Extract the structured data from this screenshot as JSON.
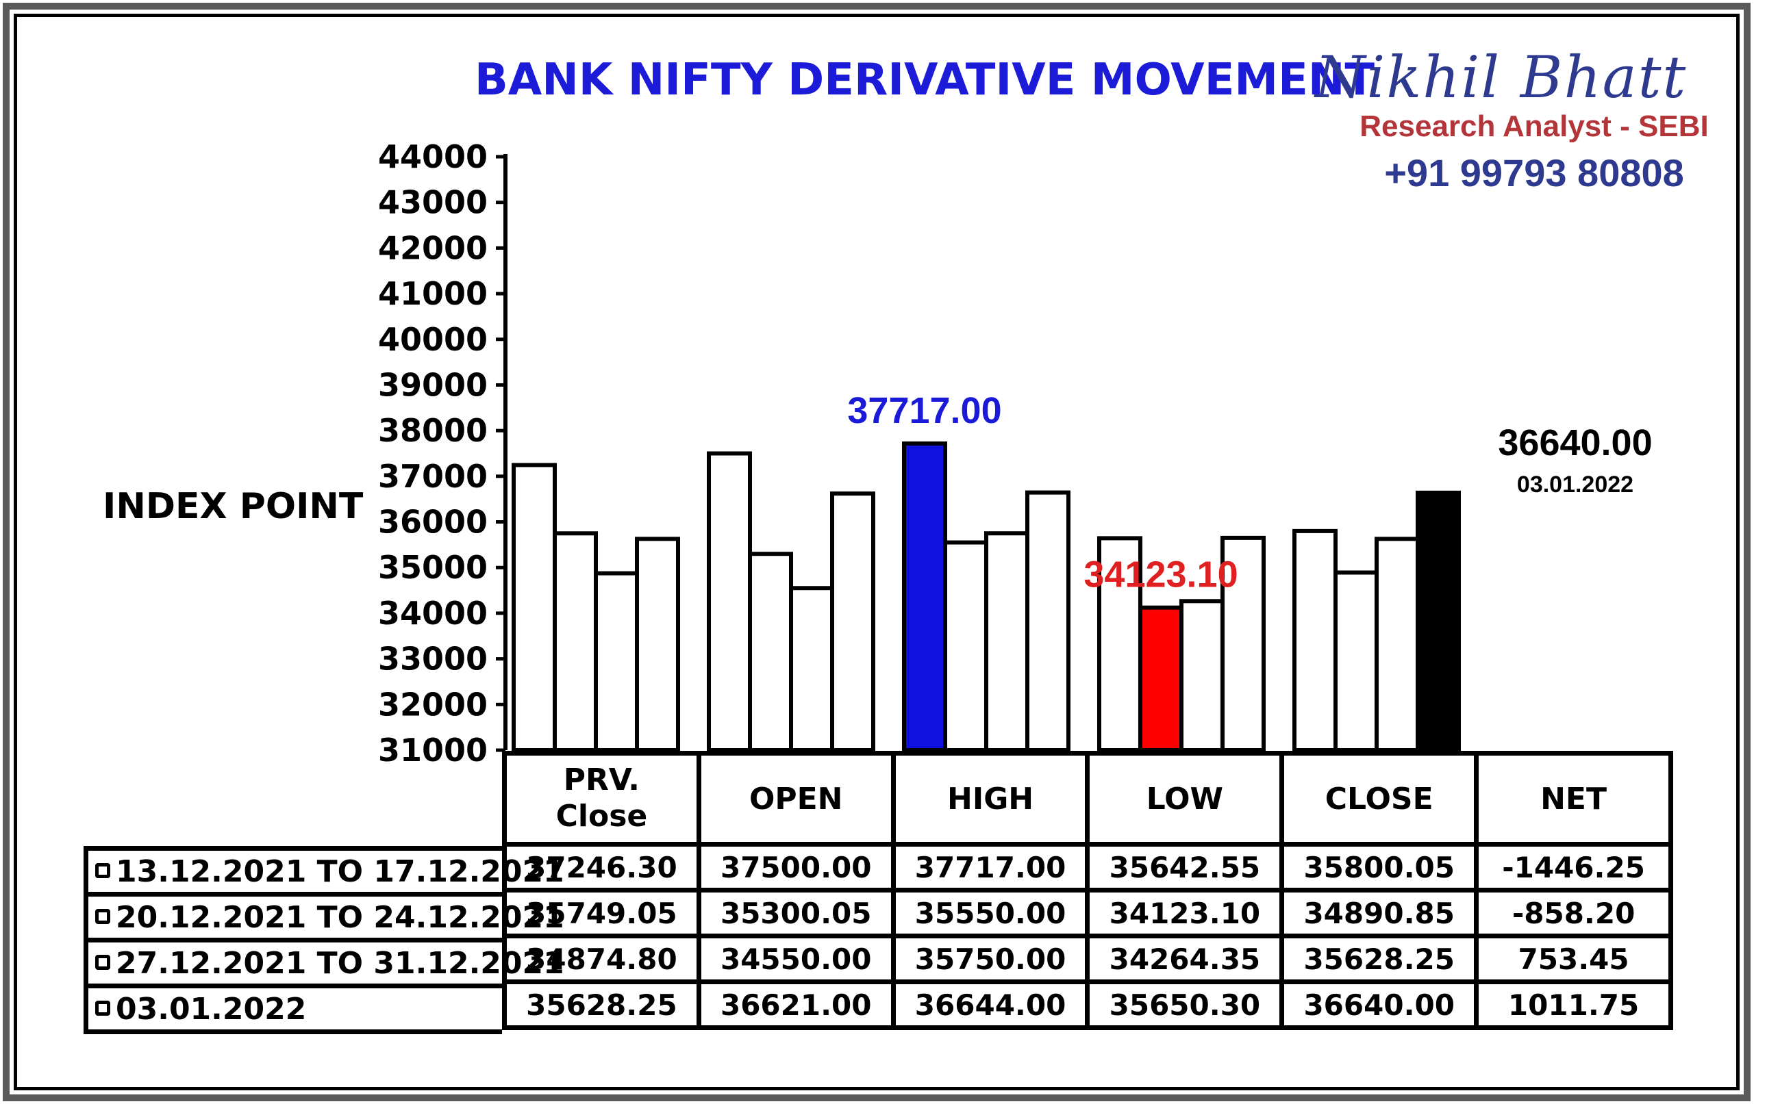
{
  "header": {
    "title": "BANK NIFTY DERIVATIVE MOVEMENT",
    "brand_name": "Nikhil Bhatt",
    "brand_role": "Research Analyst - SEBI",
    "brand_phone": "+91 99793 80808"
  },
  "colors": {
    "title": "#1b1bd8",
    "high_highlight": "#1010e0",
    "low_highlight": "#ff0000",
    "close_highlight": "#000000",
    "bar_default": "#ffffff"
  },
  "chart_data": {
    "type": "bar",
    "title": "BANK NIFTY DERIVATIVE MOVEMENT",
    "ylabel": "INDEX POINT",
    "xlabel": "",
    "ylim": [
      31000,
      44000
    ],
    "yticks": [
      31000,
      32000,
      33000,
      34000,
      35000,
      36000,
      37000,
      38000,
      39000,
      40000,
      41000,
      42000,
      43000,
      44000
    ],
    "grid": false,
    "legend": "table-left",
    "categories": [
      "PRV.\nClose",
      "OPEN",
      "HIGH",
      "LOW",
      "CLOSE"
    ],
    "series": [
      {
        "name": "13.12.2021 TO 17.12.2021",
        "values": [
          37246.3,
          37500.0,
          37717.0,
          35642.55,
          35800.05
        ]
      },
      {
        "name": "20.12.2021 TO 24.12.2021",
        "values": [
          35749.05,
          35300.05,
          35550.0,
          34123.1,
          34890.85
        ]
      },
      {
        "name": "27.12.2021 TO 31.12.2021",
        "values": [
          34874.8,
          34550.0,
          35750.0,
          34264.35,
          35628.25
        ]
      },
      {
        "name": "03.01.2022",
        "values": [
          35628.25,
          36621.0,
          36644.0,
          35650.3,
          36640.0
        ]
      }
    ],
    "highlights": [
      {
        "category": 2,
        "series": 0,
        "color": "#1010e0"
      },
      {
        "category": 3,
        "series": 1,
        "color": "#ff0000"
      },
      {
        "category": 4,
        "series": 3,
        "color": "#000000"
      }
    ],
    "annotations": [
      {
        "text": "37717.00",
        "color": "#1a1ad8",
        "category": 2,
        "series": 0
      },
      {
        "text": "34123.10",
        "color": "#e02020",
        "category": 3,
        "series": 1
      },
      {
        "text": "36640.00",
        "color": "#000000",
        "category": 4,
        "series": 3,
        "subtext": "03.01.2022"
      }
    ]
  },
  "table": {
    "headers": [
      "PRV.\nClose",
      "OPEN",
      "HIGH",
      "LOW",
      "CLOSE",
      "NET"
    ],
    "rows": [
      {
        "label": "13.12.2021 TO 17.12.2021",
        "cells": [
          "37246.30",
          "37500.00",
          "37717.00",
          "35642.55",
          "35800.05",
          "-1446.25"
        ]
      },
      {
        "label": "20.12.2021 TO 24.12.2021",
        "cells": [
          "35749.05",
          "35300.05",
          "35550.00",
          "34123.10",
          "34890.85",
          "-858.20"
        ]
      },
      {
        "label": "27.12.2021 TO 31.12.2021",
        "cells": [
          "34874.80",
          "34550.00",
          "35750.00",
          "34264.35",
          "35628.25",
          "753.45"
        ]
      },
      {
        "label": "03.01.2022",
        "cells": [
          "35628.25",
          "36621.00",
          "36644.00",
          "35650.30",
          "36640.00",
          "1011.75"
        ]
      }
    ]
  }
}
